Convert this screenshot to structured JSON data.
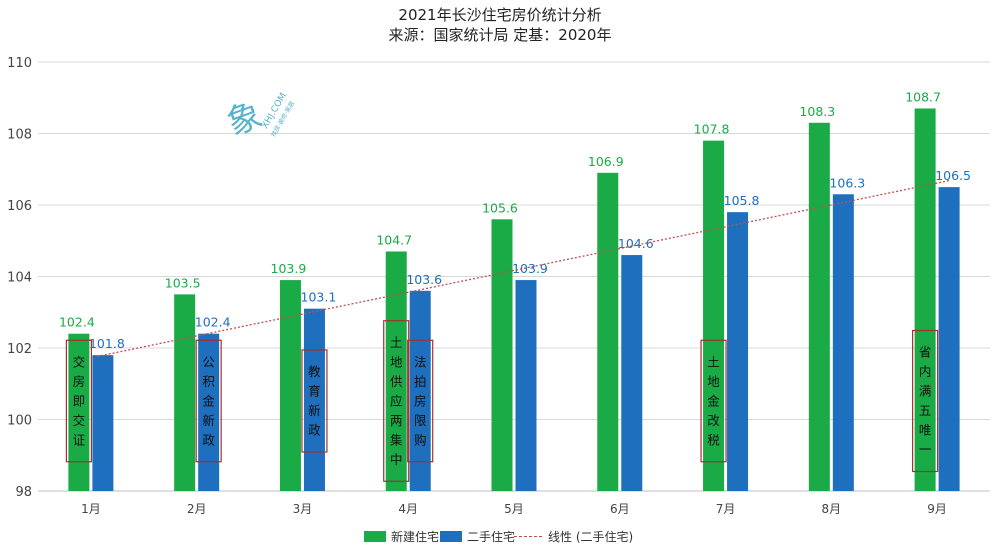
{
  "title": "2021年长沙住宅房价统计分析",
  "subtitle": "来源：国家统计局 定基：2020年",
  "watermark": {
    "logo_text": "象",
    "domain": "XHJ.COM",
    "slogan": "找房·装修·家居"
  },
  "colors": {
    "new": "#1aab47",
    "second": "#1f6fbf",
    "trend": "#c0504d",
    "grid": "#d9d9d9",
    "annotation_border": "#a33030"
  },
  "chart_data": {
    "type": "bar",
    "title": "2021年长沙住宅房价统计分析",
    "subtitle": "来源：国家统计局 定基：2020年",
    "categories": [
      "1月",
      "2月",
      "3月",
      "4月",
      "5月",
      "6月",
      "7月",
      "8月",
      "9月"
    ],
    "series": [
      {
        "name": "新建住宅",
        "values": [
          102.4,
          103.5,
          103.9,
          104.7,
          105.6,
          106.9,
          107.8,
          108.3,
          108.7
        ]
      },
      {
        "name": "二手住宅",
        "values": [
          101.8,
          102.4,
          103.1,
          103.6,
          103.9,
          104.6,
          105.8,
          106.3,
          106.5
        ]
      }
    ],
    "trendline": {
      "name": "线性 (二手住宅)",
      "series": "二手住宅",
      "type": "linear"
    },
    "ylim": [
      98,
      110
    ],
    "yticks": [
      98,
      100,
      102,
      104,
      106,
      108,
      110
    ],
    "grid": true,
    "legend": "bottom",
    "annotations": [
      {
        "category": "1月",
        "series": "新建住宅",
        "text": "交房即交证"
      },
      {
        "category": "2月",
        "series": "二手住宅",
        "text": "公积金新政"
      },
      {
        "category": "3月",
        "series": "二手住宅",
        "text": "教育新政"
      },
      {
        "category": "4月",
        "series": "新建住宅",
        "text": "土地供应两集中"
      },
      {
        "category": "4月",
        "series": "二手住宅",
        "text": "法拍房限购"
      },
      {
        "category": "7月",
        "series": "新建住宅",
        "text": "土地金改税"
      },
      {
        "category": "9月",
        "series": "新建住宅",
        "text": "省内满五唯一"
      }
    ]
  }
}
